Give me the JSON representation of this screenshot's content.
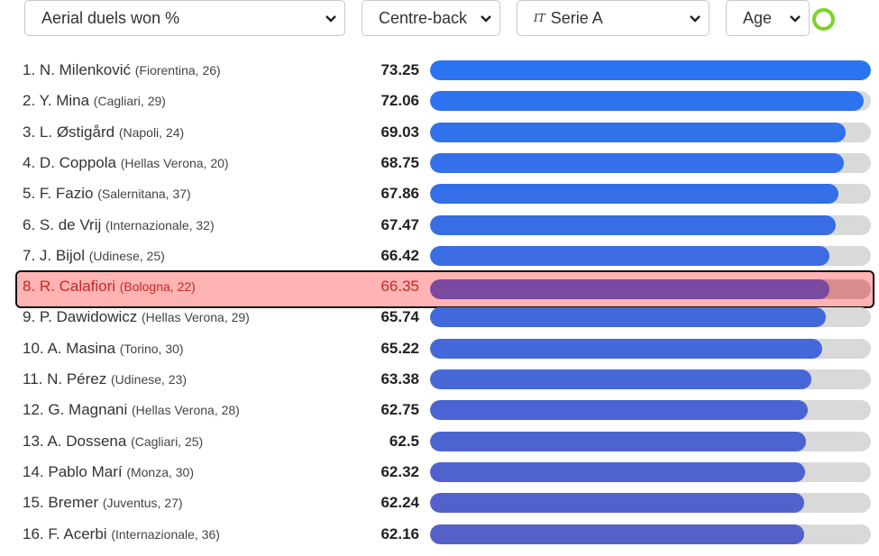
{
  "filters": {
    "metric": "Aerial duels won %",
    "position": "Centre-back",
    "league_flag": "IT",
    "league": "Serie A",
    "sort": "Age"
  },
  "colors": {
    "bar_top": "#2a74f2",
    "bar_bottom": "#5560c8",
    "highlight_bar": "#7a4aa0",
    "highlight_bg": "#ffb3b3",
    "status_ring": "#7ed321"
  },
  "max_value": 73.25,
  "rows": [
    {
      "rank": "1.",
      "name": "N. Milenković",
      "meta": "(Fiorentina, 26)",
      "value": "73.25"
    },
    {
      "rank": "2.",
      "name": "Y. Mina",
      "meta": "(Cagliari, 29)",
      "value": "72.06"
    },
    {
      "rank": "3.",
      "name": "L. Østigård",
      "meta": "(Napoli, 24)",
      "value": "69.03"
    },
    {
      "rank": "4.",
      "name": "D. Coppola",
      "meta": "(Hellas Verona, 20)",
      "value": "68.75"
    },
    {
      "rank": "5.",
      "name": "F. Fazio",
      "meta": "(Salernitana, 37)",
      "value": "67.86"
    },
    {
      "rank": "6.",
      "name": "S. de Vrij",
      "meta": "(Internazionale, 32)",
      "value": "67.47"
    },
    {
      "rank": "7.",
      "name": "J. Bijol",
      "meta": "(Udinese, 25)",
      "value": "66.42"
    },
    {
      "rank": "8.",
      "name": "R. Calafiori",
      "meta": "(Bologna, 22)",
      "value": "66.35",
      "highlighted": true
    },
    {
      "rank": "9.",
      "name": "P. Dawidowicz",
      "meta": "(Hellas Verona, 29)",
      "value": "65.74"
    },
    {
      "rank": "10.",
      "name": "A. Masina",
      "meta": "(Torino, 30)",
      "value": "65.22"
    },
    {
      "rank": "11.",
      "name": "N. Pérez",
      "meta": "(Udinese, 23)",
      "value": "63.38"
    },
    {
      "rank": "12.",
      "name": "G. Magnani",
      "meta": "(Hellas Verona, 28)",
      "value": "62.75"
    },
    {
      "rank": "13.",
      "name": "A. Dossena",
      "meta": "(Cagliari, 25)",
      "value": "62.5"
    },
    {
      "rank": "14.",
      "name": "Pablo Marí",
      "meta": "(Monza, 30)",
      "value": "62.32"
    },
    {
      "rank": "15.",
      "name": "Bremer",
      "meta": "(Juventus, 27)",
      "value": "62.24"
    },
    {
      "rank": "16.",
      "name": "F. Acerbi",
      "meta": "(Internazionale, 36)",
      "value": "62.16"
    }
  ]
}
